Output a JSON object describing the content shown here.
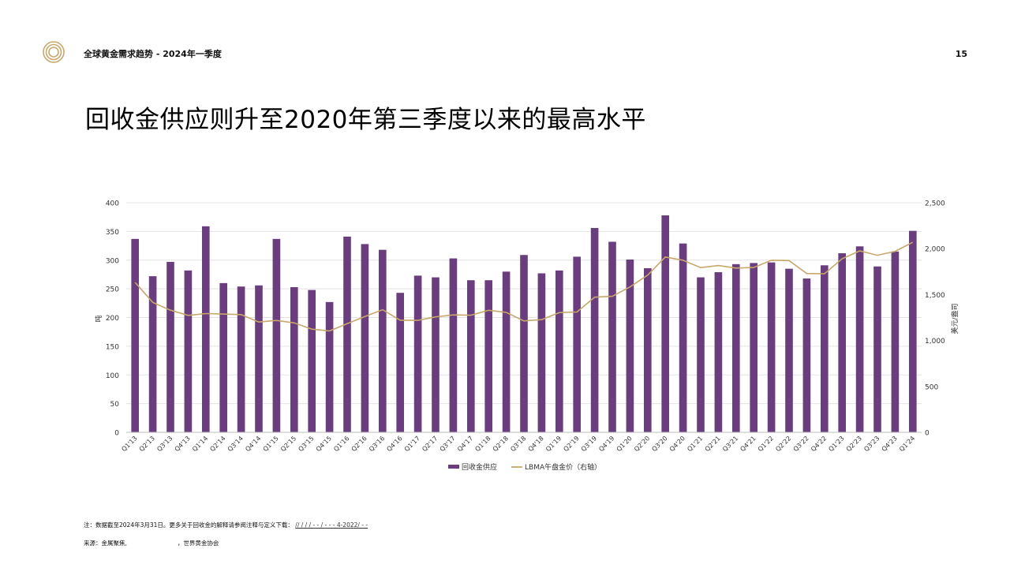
{
  "header": {
    "title": "全球黄金需求趋势 - 2024年一季度",
    "page_number": "15"
  },
  "main_title": "回收金供应则升至2020年第三季度以来的最高水平",
  "colors": {
    "bar": "#6a3d7e",
    "line": "#c8a76a",
    "grid": "#e3e3e3",
    "logo": "#c8a76a"
  },
  "chart_data": {
    "type": "bar",
    "categories": [
      "Q1'13",
      "Q2'13",
      "Q3'13",
      "Q4'13",
      "Q1'14",
      "Q2'14",
      "Q3'14",
      "Q4'14",
      "Q1'15",
      "Q2'15",
      "Q3'15",
      "Q4'15",
      "Q1'16",
      "Q2'16",
      "Q3'16",
      "Q4'16",
      "Q1'17",
      "Q2'17",
      "Q3'17",
      "Q4'17",
      "Q1'18",
      "Q2'18",
      "Q3'18",
      "Q4'18",
      "Q1'19",
      "Q2'19",
      "Q3'19",
      "Q4'19",
      "Q1'20",
      "Q2'20",
      "Q3'20",
      "Q4'20",
      "Q1'21",
      "Q2'21",
      "Q3'21",
      "Q4'21",
      "Q1'22",
      "Q2'22",
      "Q3'22",
      "Q4'22",
      "Q1'23",
      "Q2'23",
      "Q3'23",
      "Q4'23",
      "Q1'24"
    ],
    "series": [
      {
        "name": "回收金供应",
        "type": "bar",
        "axis": "left",
        "values": [
          337,
          272,
          297,
          282,
          359,
          260,
          254,
          256,
          337,
          253,
          248,
          227,
          341,
          328,
          318,
          243,
          273,
          270,
          303,
          265,
          265,
          280,
          309,
          277,
          282,
          306,
          356,
          332,
          301,
          286,
          378,
          329,
          270,
          279,
          293,
          295,
          296,
          285,
          268,
          291,
          312,
          324,
          289,
          315,
          351
        ]
      },
      {
        "name": "LBMA午盘金价（右轴）",
        "type": "line",
        "axis": "right",
        "values": [
          1632,
          1415,
          1330,
          1273,
          1293,
          1288,
          1282,
          1201,
          1218,
          1192,
          1124,
          1104,
          1183,
          1260,
          1335,
          1221,
          1219,
          1257,
          1278,
          1275,
          1329,
          1306,
          1213,
          1227,
          1304,
          1310,
          1472,
          1481,
          1583,
          1711,
          1909,
          1874,
          1794,
          1816,
          1789,
          1795,
          1874,
          1870,
          1729,
          1726,
          1890,
          1976,
          1928,
          1971,
          2070
        ]
      }
    ],
    "ylabel": "吨",
    "ylabel_right": "美元/盎司",
    "ylim": [
      0,
      400
    ],
    "ylim_right": [
      0,
      2500
    ],
    "yticks": [
      "0",
      "50",
      "100",
      "150",
      "200",
      "250",
      "300",
      "350",
      "400"
    ],
    "yticks_right": [
      "0",
      "500",
      "1,000",
      "1,500",
      "2,000",
      "2,500"
    ],
    "grid": true,
    "legend_position": "bottom-center"
  },
  "footer": {
    "note": "注：数据截至2024年3月31日。更多关于回收金的解释请参阅注释与定义下载：",
    "note_link": "//                /          /          /     -          -       /     -          -       -  4-2022/       -    -",
    "source_prefix": "来源：金属聚焦,",
    "source_suffix": "，世界黄金协会"
  }
}
